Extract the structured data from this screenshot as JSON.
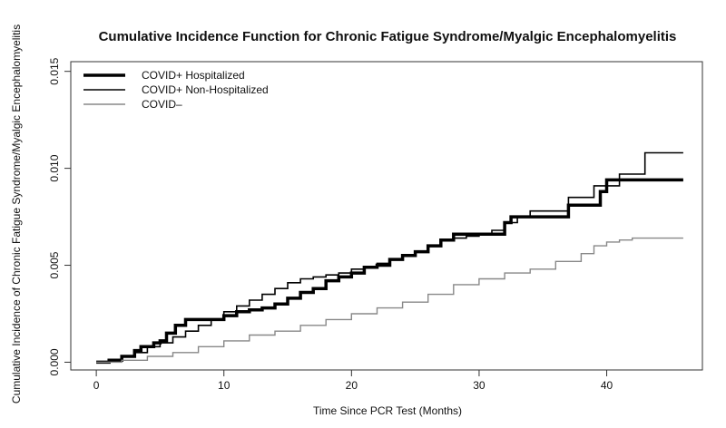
{
  "chart_data": {
    "type": "line",
    "title": "Cumulative Incidence Function for Chronic Fatigue Syndrome/Myalgic Encephalomyelitis",
    "xlabel": "Time Since PCR Test (Months)",
    "ylabel": "Cumulative Incidence of Chronic Fatigue Syndrome/Myalgic Encephalomyelitis",
    "xlim": [
      -2,
      47.5
    ],
    "ylim": [
      -0.0004,
      0.0155
    ],
    "x_ticks": [
      0,
      10,
      20,
      30,
      40
    ],
    "y_ticks": [
      0.0,
      0.005,
      0.01,
      0.015
    ],
    "x_tick_labels": [
      "0",
      "10",
      "20",
      "30",
      "40"
    ],
    "y_tick_labels": [
      "0.000",
      "0.005",
      "0.010",
      "0.015"
    ],
    "grid": false,
    "legend_position": "top-left",
    "series": [
      {
        "name": "COVID+ Hospitalized",
        "color": "#000000",
        "line_width": 3.5,
        "step": true,
        "points": [
          [
            0,
            0
          ],
          [
            1,
            0.0001
          ],
          [
            2,
            0.0003
          ],
          [
            3,
            0.0006
          ],
          [
            3.5,
            0.0008
          ],
          [
            4.5,
            0.001
          ],
          [
            5,
            0.0011
          ],
          [
            5.5,
            0.0015
          ],
          [
            6.2,
            0.0019
          ],
          [
            7,
            0.0022
          ],
          [
            9,
            0.0022
          ],
          [
            10,
            0.0024
          ],
          [
            11,
            0.0026
          ],
          [
            12,
            0.0027
          ],
          [
            13,
            0.0028
          ],
          [
            14,
            0.003
          ],
          [
            15,
            0.0033
          ],
          [
            16,
            0.0036
          ],
          [
            17,
            0.0038
          ],
          [
            18,
            0.0042
          ],
          [
            19,
            0.0044
          ],
          [
            20,
            0.0046
          ],
          [
            21,
            0.0049
          ],
          [
            22,
            0.005
          ],
          [
            23,
            0.0053
          ],
          [
            24,
            0.0055
          ],
          [
            25,
            0.0057
          ],
          [
            26,
            0.006
          ],
          [
            27,
            0.0063
          ],
          [
            28,
            0.0066
          ],
          [
            32,
            0.0072
          ],
          [
            32.5,
            0.0075
          ],
          [
            37,
            0.0081
          ],
          [
            39.5,
            0.0088
          ],
          [
            40,
            0.0094
          ],
          [
            46,
            0.0094
          ]
        ]
      },
      {
        "name": "COVID+ Non-Hospitalized",
        "color": "#000000",
        "line_width": 1.6,
        "step": true,
        "points": [
          [
            0,
            0
          ],
          [
            1,
            0.0001
          ],
          [
            2,
            0.0003
          ],
          [
            3,
            0.0005
          ],
          [
            4,
            0.0008
          ],
          [
            5,
            0.001
          ],
          [
            6,
            0.0013
          ],
          [
            7,
            0.0016
          ],
          [
            8,
            0.0019
          ],
          [
            9,
            0.0022
          ],
          [
            10,
            0.0026
          ],
          [
            11,
            0.0029
          ],
          [
            12,
            0.0032
          ],
          [
            13,
            0.0035
          ],
          [
            14,
            0.0038
          ],
          [
            15,
            0.0041
          ],
          [
            16,
            0.0043
          ],
          [
            17,
            0.0044
          ],
          [
            18,
            0.0045
          ],
          [
            19,
            0.0046
          ],
          [
            20,
            0.0048
          ],
          [
            21,
            0.0049
          ],
          [
            22,
            0.0051
          ],
          [
            23,
            0.0053
          ],
          [
            24,
            0.0055
          ],
          [
            25,
            0.0057
          ],
          [
            26,
            0.006
          ],
          [
            27,
            0.0063
          ],
          [
            28,
            0.0064
          ],
          [
            29,
            0.0065
          ],
          [
            30,
            0.0066
          ],
          [
            31,
            0.0068
          ],
          [
            32,
            0.0072
          ],
          [
            33,
            0.0075
          ],
          [
            34,
            0.0078
          ],
          [
            37,
            0.0085
          ],
          [
            39,
            0.0091
          ],
          [
            41,
            0.0097
          ],
          [
            43,
            0.0108
          ],
          [
            46,
            0.0108
          ]
        ]
      },
      {
        "name": "COVID–",
        "color": "#888888",
        "line_width": 1.4,
        "step": true,
        "points": [
          [
            0,
            0
          ],
          [
            2,
            0.0001
          ],
          [
            4,
            0.0003
          ],
          [
            6,
            0.0005
          ],
          [
            8,
            0.0008
          ],
          [
            10,
            0.0011
          ],
          [
            12,
            0.0014
          ],
          [
            14,
            0.0016
          ],
          [
            16,
            0.0019
          ],
          [
            18,
            0.0022
          ],
          [
            20,
            0.0025
          ],
          [
            22,
            0.0028
          ],
          [
            24,
            0.0031
          ],
          [
            26,
            0.0035
          ],
          [
            28,
            0.004
          ],
          [
            30,
            0.0043
          ],
          [
            32,
            0.0046
          ],
          [
            34,
            0.0048
          ],
          [
            36,
            0.0052
          ],
          [
            38,
            0.0056
          ],
          [
            39,
            0.006
          ],
          [
            40,
            0.0062
          ],
          [
            41,
            0.0063
          ],
          [
            42,
            0.0064
          ],
          [
            46,
            0.0064
          ]
        ]
      }
    ]
  }
}
